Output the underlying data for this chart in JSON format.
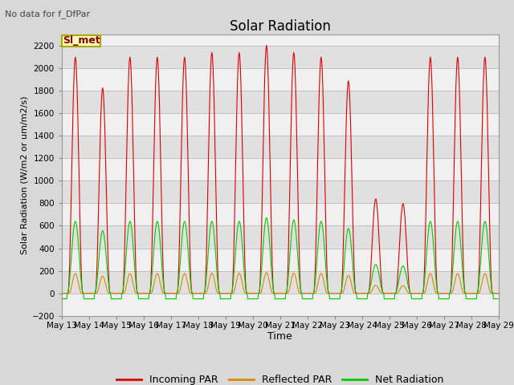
{
  "title": "Solar Radiation",
  "subtitle": "No data for f_DfPar",
  "xlabel": "Time",
  "ylabel": "Solar Radiation (W/m2 or um/m2/s)",
  "ylim": [
    -200,
    2300
  ],
  "yticks": [
    -200,
    0,
    200,
    400,
    600,
    800,
    1000,
    1200,
    1400,
    1600,
    1800,
    2000,
    2200
  ],
  "legend_label": "Sl_met",
  "start_day": 13,
  "num_days": 16,
  "incoming_color": "#dd0000",
  "reflected_color": "#dd8800",
  "net_color": "#00cc00",
  "bg_color": "#d8d8d8",
  "panel_color": "#f0f0f0",
  "panel_alt_color": "#e0e0e0"
}
